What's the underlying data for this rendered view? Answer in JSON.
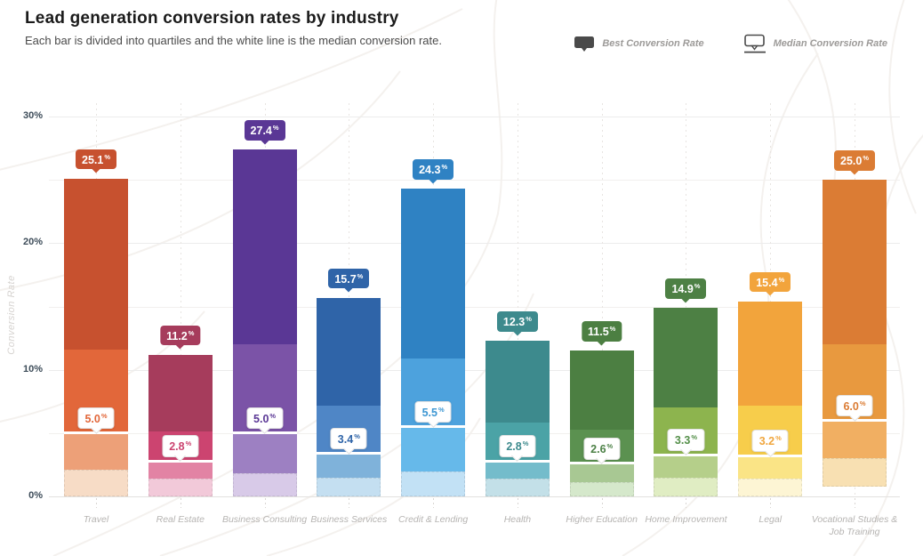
{
  "title": "Lead generation conversion rates by industry",
  "subtitle": "Each bar is divided into quartiles and the white line is the median conversion rate.",
  "legend": {
    "best_label": "Best Conversion Rate",
    "median_label": "Median Conversion Rate"
  },
  "y_axis_title": "Conversion Rate",
  "chart_data": {
    "type": "bar",
    "subtype": "quartile-distribution-columns",
    "title": "Lead generation conversion rates by industry",
    "ylabel": "Conversion Rate",
    "xlabel": "",
    "units": "%",
    "ylim": [
      0,
      30
    ],
    "yticks": [
      0,
      10,
      20,
      30
    ],
    "ytick_labels": [
      "0%",
      "10%",
      "20%",
      "30%"
    ],
    "minor_gridlines": [
      5,
      15,
      25
    ],
    "grid": "horizontal",
    "legend_position": "top-right",
    "categories": [
      "Travel",
      "Real Estate",
      "Business Consulting",
      "Business Services",
      "Credit & Lending",
      "Health",
      "Higher Education",
      "Home Improvement",
      "Legal",
      "Vocational Studies & Job Training"
    ],
    "series": [
      {
        "name": "Travel",
        "best": 25.1,
        "q3": 11.6,
        "median": 5.0,
        "q1": 2.1,
        "min": 0,
        "best_label": "25.1",
        "median_label": "5.0",
        "colors": {
          "dark": "#c7512f",
          "mid": "#e2673a",
          "light": "#eda078",
          "lightest": "#f7dcc6",
          "median_text": "#e2673a"
        },
        "dotted_segments": [
          "lightest"
        ]
      },
      {
        "name": "Real Estate",
        "best": 11.2,
        "q3": 5.1,
        "median": 2.8,
        "q1": 1.4,
        "min": 0,
        "best_label": "11.2",
        "median_label": "2.8",
        "colors": {
          "dark": "#a63c5c",
          "mid": "#cc4470",
          "light": "#e283a4",
          "lightest": "#f2c9d9",
          "median_text": "#cc4470"
        },
        "dotted_segments": []
      },
      {
        "name": "Business Consulting",
        "best": 27.4,
        "q3": 12.0,
        "median": 5.0,
        "q1": 1.8,
        "min": 0,
        "best_label": "27.4",
        "median_label": "5.0",
        "colors": {
          "dark": "#5a3795",
          "mid": "#7b53a7",
          "light": "#9d80c2",
          "lightest": "#d8cae8",
          "median_text": "#5a3795"
        },
        "dotted_segments": [
          "lightest"
        ]
      },
      {
        "name": "Business Services",
        "best": 15.7,
        "q3": 7.2,
        "median": 3.4,
        "q1": 1.5,
        "min": 0,
        "best_label": "15.7",
        "median_label": "3.4",
        "colors": {
          "dark": "#2f64a8",
          "mid": "#4f86c6",
          "light": "#7fb2da",
          "lightest": "#c4dff1",
          "median_text": "#2f64a8"
        },
        "dotted_segments": [
          "light",
          "lightest"
        ]
      },
      {
        "name": "Credit & Lending",
        "best": 24.3,
        "q3": 10.9,
        "median": 5.5,
        "q1": 2.0,
        "min": 0,
        "best_label": "24.3",
        "median_label": "5.5",
        "colors": {
          "dark": "#2f82c3",
          "mid": "#4da2dd",
          "light": "#66b9ea",
          "lightest": "#c2e1f5",
          "median_text": "#3d97d3"
        },
        "dotted_segments": []
      },
      {
        "name": "Health",
        "best": 12.3,
        "q3": 5.8,
        "median": 2.8,
        "q1": 1.4,
        "min": 0,
        "best_label": "12.3",
        "median_label": "2.8",
        "colors": {
          "dark": "#3d8a8d",
          "mid": "#4ba3a6",
          "light": "#74bccb",
          "lightest": "#c3e0e8",
          "median_text": "#3d8a8d"
        },
        "dotted_segments": [
          "light",
          "lightest"
        ]
      },
      {
        "name": "Higher Education",
        "best": 11.5,
        "q3": 5.3,
        "median": 2.6,
        "q1": 1.1,
        "min": 0,
        "best_label": "11.5",
        "median_label": "2.6",
        "colors": {
          "dark": "#4c7f42",
          "mid": "#5b9150",
          "light": "#a8c893",
          "lightest": "#d5e8cb",
          "median_text": "#4c8046"
        },
        "dotted_segments": []
      },
      {
        "name": "Home Improvement",
        "best": 14.9,
        "q3": 7.0,
        "median": 3.3,
        "q1": 1.5,
        "min": 0,
        "best_label": "14.9",
        "median_label": "3.3",
        "colors": {
          "dark": "#4d8044",
          "mid": "#8db44e",
          "light": "#b5cf8a",
          "lightest": "#e0edc3",
          "median_text": "#55904a"
        },
        "dotted_segments": []
      },
      {
        "name": "Legal",
        "best": 15.4,
        "q3": 7.2,
        "median": 3.2,
        "q1": 1.4,
        "min": 0,
        "best_label": "15.4",
        "median_label": "3.2",
        "colors": {
          "dark": "#f2a43c",
          "mid": "#f7cd4b",
          "light": "#fae486",
          "lightest": "#fdf5d4",
          "median_text": "#f0a63e"
        },
        "dotted_segments": [
          "lightest"
        ]
      },
      {
        "name": "Vocational Studies & Job Training",
        "axis_label": "Vocational Studies &\nJob Training",
        "best": 25.0,
        "q3": 12.0,
        "median": 6.0,
        "q1": 3.0,
        "min": 0.8,
        "best_label": "25.0",
        "median_label": "6.0",
        "colors": {
          "dark": "#db7c34",
          "mid": "#e8993f",
          "light": "#f1af62",
          "lightest": "#f8e0b2",
          "median_text": "#db7c34"
        },
        "dotted_segments": []
      }
    ]
  }
}
